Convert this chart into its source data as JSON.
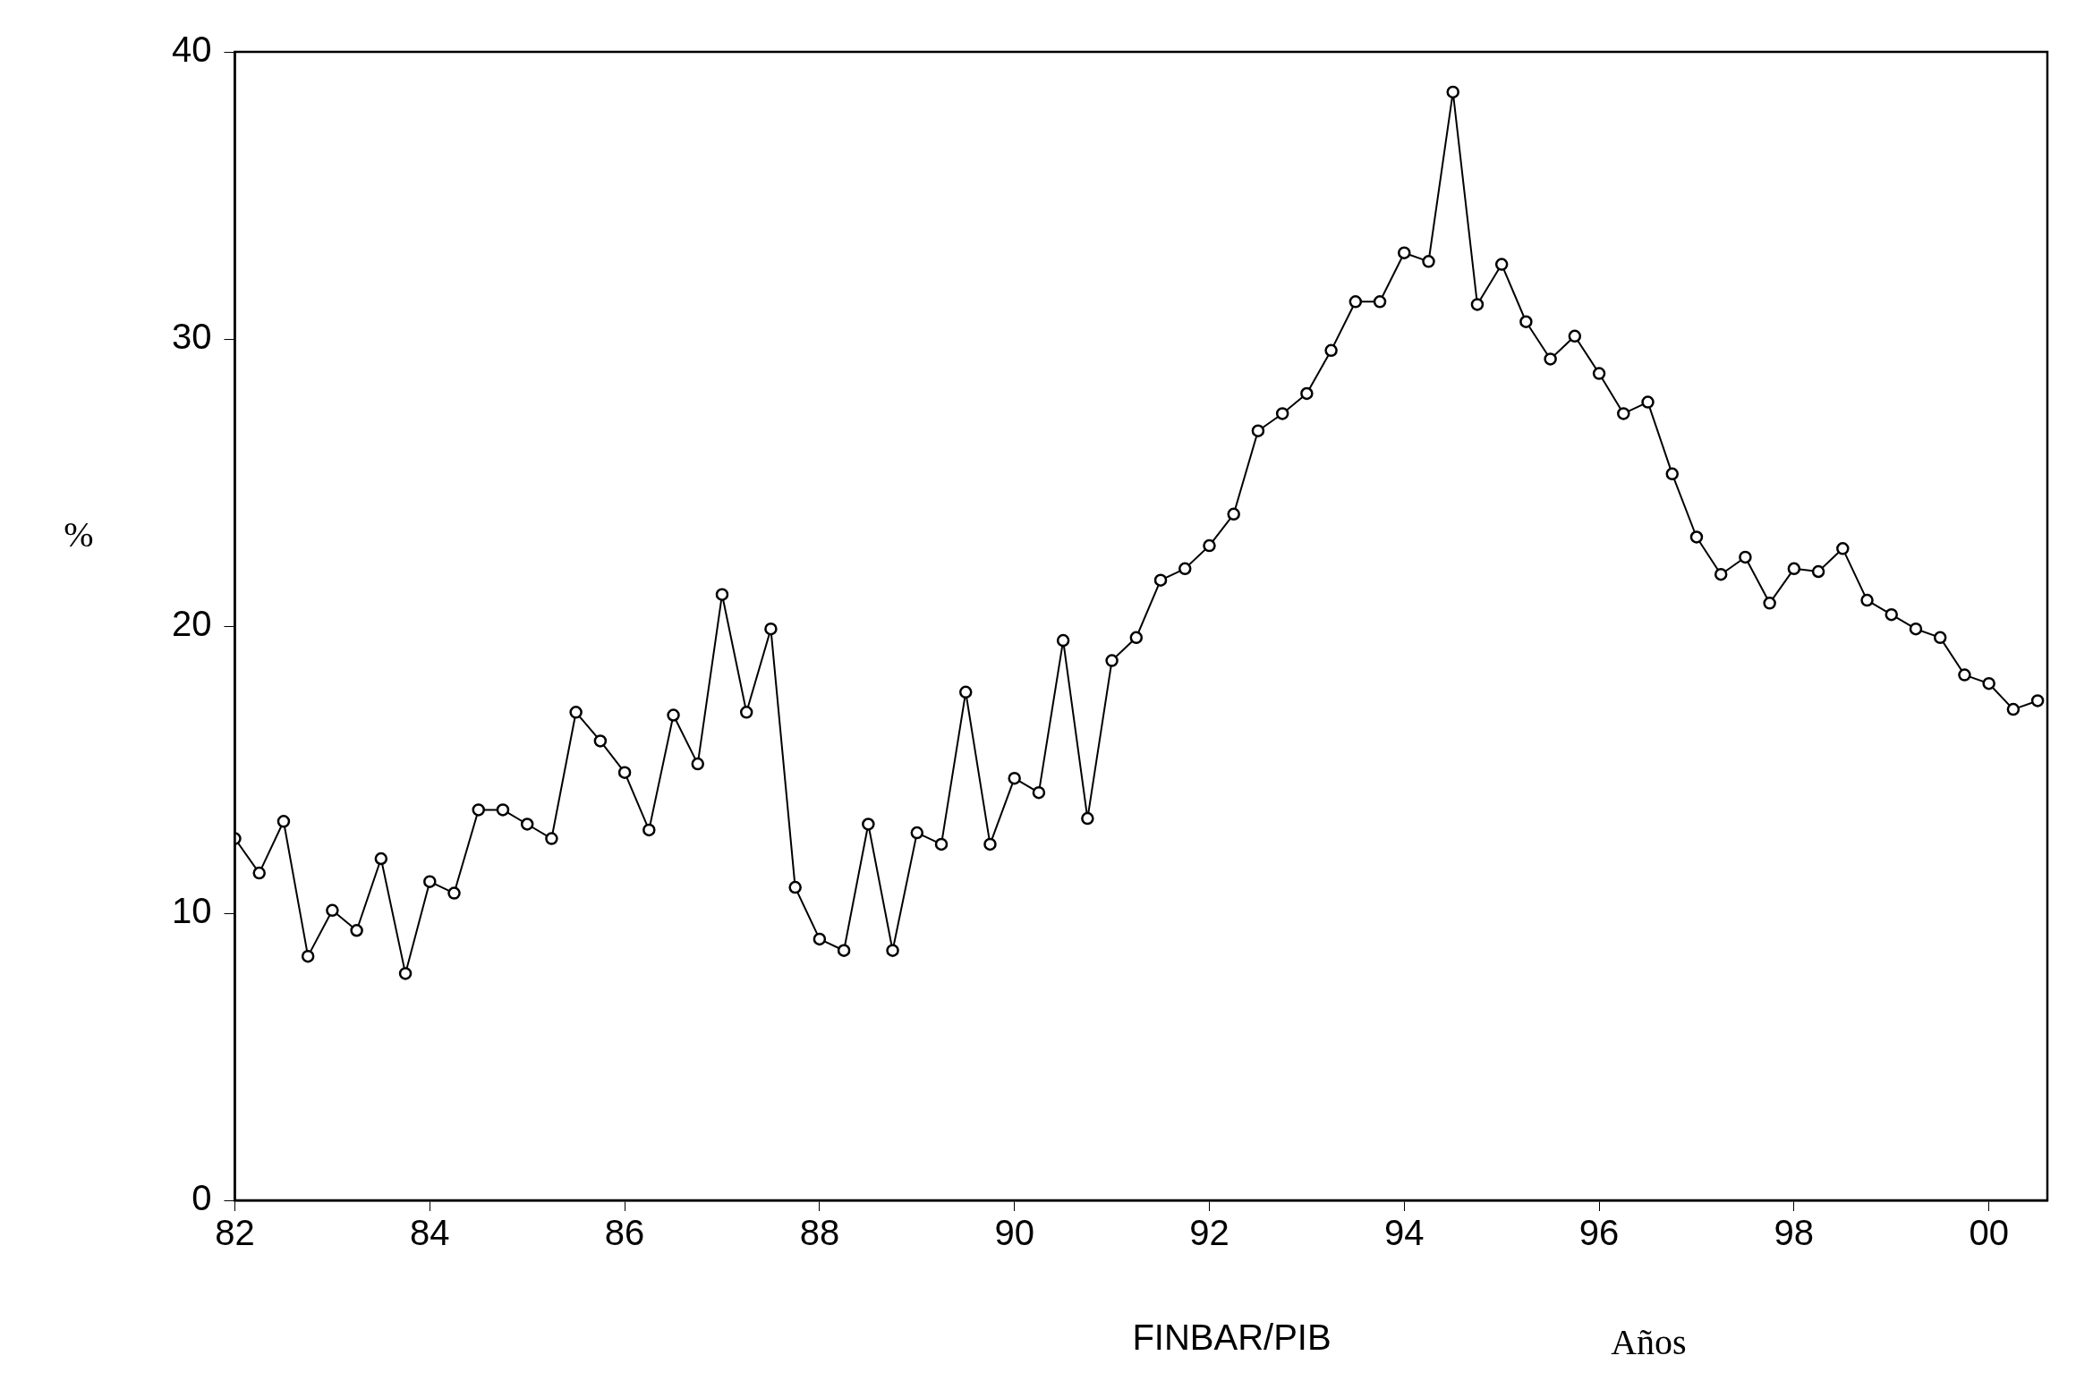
{
  "chart_data": {
    "type": "line",
    "title": "FINBAR/PIB",
    "xlabel": "Años",
    "ylabel": "%",
    "x": [
      1982,
      1982.25,
      1982.5,
      1982.75,
      1983,
      1983.25,
      1983.5,
      1983.75,
      1984,
      1984.25,
      1984.5,
      1984.75,
      1985,
      1985.25,
      1985.5,
      1985.75,
      1986,
      1986.25,
      1986.5,
      1986.75,
      1987,
      1987.25,
      1987.5,
      1987.75,
      1988,
      1988.25,
      1988.5,
      1988.75,
      1989,
      1989.25,
      1989.5,
      1989.75,
      1990,
      1990.25,
      1990.5,
      1990.75,
      1991,
      1991.25,
      1991.5,
      1991.75,
      1992,
      1992.25,
      1992.5,
      1992.75,
      1993,
      1993.25,
      1993.5,
      1993.75,
      1994,
      1994.25,
      1994.5,
      1994.75,
      1995,
      1995.25,
      1995.5,
      1995.75,
      1996,
      1996.25,
      1996.5,
      1996.75,
      1997,
      1997.25,
      1997.5,
      1997.75,
      1998,
      1998.25,
      1998.5,
      1998.75,
      1999,
      1999.25,
      1999.5,
      1999.75,
      2000,
      2000.25,
      2000.5
    ],
    "series": [
      {
        "color": "#000000",
        "values": [
          12.6,
          11.4,
          13.2,
          8.5,
          10.1,
          9.4,
          11.9,
          7.9,
          11.1,
          10.7,
          13.6,
          13.6,
          13.1,
          12.6,
          17.0,
          16.0,
          14.9,
          12.9,
          16.9,
          15.2,
          21.1,
          17.0,
          19.9,
          10.9,
          9.1,
          8.7,
          13.1,
          8.7,
          12.8,
          12.4,
          17.7,
          12.4,
          14.7,
          14.2,
          19.5,
          13.3,
          18.8,
          19.6,
          21.6,
          22.0,
          22.8,
          23.9,
          26.8,
          27.4,
          28.1,
          29.6,
          31.3,
          31.3,
          33.0,
          32.7,
          38.6,
          31.2,
          32.6,
          30.6,
          29.3,
          30.1,
          28.8,
          27.4,
          27.8,
          25.3,
          23.1,
          21.8,
          22.4,
          20.8,
          22.0,
          21.9,
          22.7,
          20.9,
          20.4,
          19.9,
          19.6,
          18.3,
          18.0,
          17.1,
          17.4
        ]
      }
    ],
    "xlim": [
      1982,
      2000.6
    ],
    "xticks": [
      {
        "value": 1982,
        "label": "82"
      },
      {
        "value": 1984,
        "label": "84"
      },
      {
        "value": 1986,
        "label": "86"
      },
      {
        "value": 1988,
        "label": "88"
      },
      {
        "value": 1990,
        "label": "90"
      },
      {
        "value": 1992,
        "label": "92"
      },
      {
        "value": 1994,
        "label": "94"
      },
      {
        "value": 1996,
        "label": "96"
      },
      {
        "value": 1998,
        "label": "98"
      },
      {
        "value": 2000,
        "label": "00"
      }
    ],
    "ylim": [
      0,
      40
    ],
    "yticks": [
      0,
      10,
      20,
      30,
      40
    ],
    "grid": false,
    "legend": false,
    "marker": "circle",
    "line_style": "solid"
  }
}
